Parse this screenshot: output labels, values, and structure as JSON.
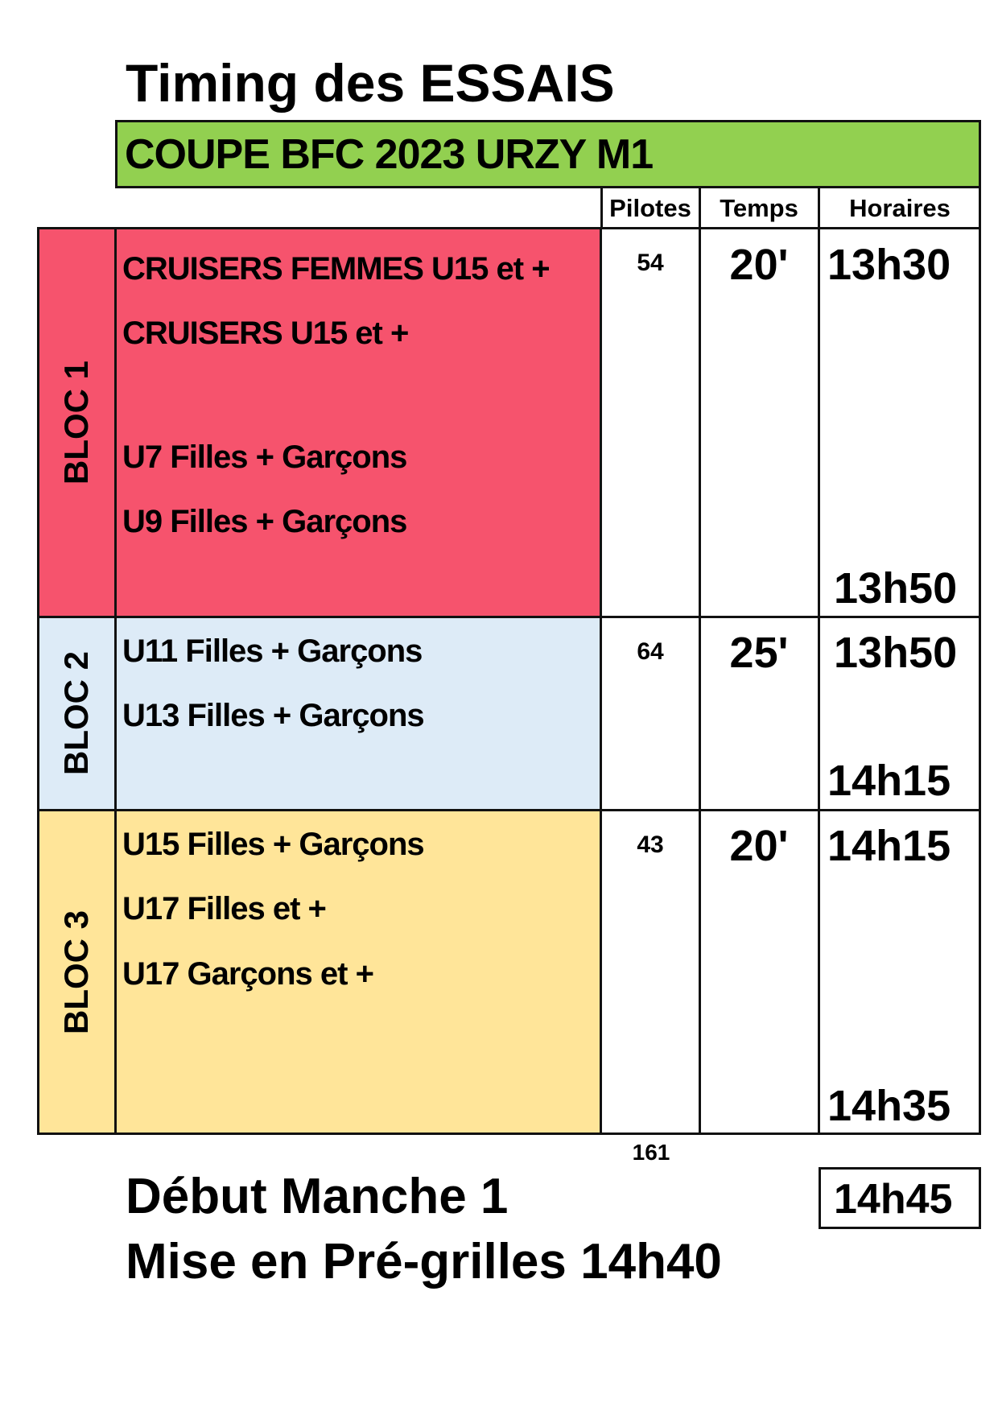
{
  "title": "Timing des ESSAIS",
  "event": "COUPE BFC 2023 URZY M1",
  "colors": {
    "event_bg": "#92D050",
    "bloc1": "#F6536D",
    "bloc2": "#DDEBF7",
    "bloc3": "#FFE599"
  },
  "headers": {
    "pilotes": "Pilotes",
    "temps": "Temps",
    "horaires": "Horaires"
  },
  "blocs": [
    {
      "label": "BLOC 1",
      "categories": [
        "CRUISERS FEMMES U15 et +",
        "CRUISERS U15 et +",
        "U7 Filles + Garçons",
        "U9 Filles + Garçons"
      ],
      "pilotes": "54",
      "temps": "20'",
      "start": "13h30",
      "end": "13h50"
    },
    {
      "label": "BLOC 2",
      "categories": [
        "U11 Filles + Garçons",
        "U13 Filles + Garçons"
      ],
      "pilotes": "64",
      "temps": "25'",
      "start": "13h50",
      "end": "14h15"
    },
    {
      "label": "BLOC 3",
      "categories": [
        "U15 Filles + Garçons",
        "U17 Filles et +",
        "U17 Garçons et +"
      ],
      "pilotes": "43",
      "temps": "20'",
      "start": "14h15",
      "end": "14h35"
    }
  ],
  "total_pilotes": "161",
  "debut_label": "Début Manche 1",
  "debut_time": "14h45",
  "pregrille": "Mise en Pré-grilles 14h40"
}
